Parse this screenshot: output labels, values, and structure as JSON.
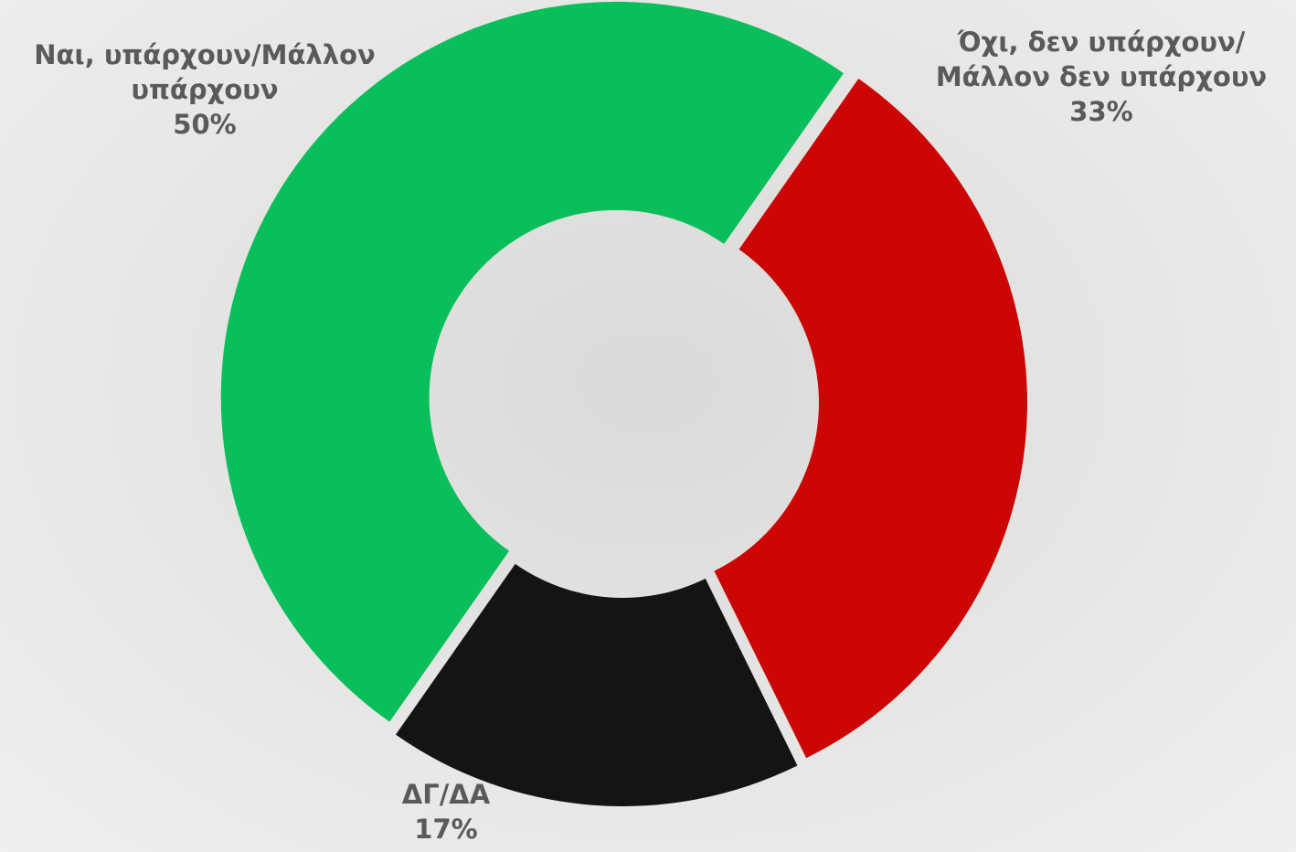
{
  "chart_data": {
    "type": "donut",
    "categories": [
      "Ναι, υπάρχουν/Μάλλον υπάρχουν",
      "Όχι, δεν υπάρχουν/Μάλλον δεν υπάρχουν",
      "ΔΓ/ΔΑ"
    ],
    "values": [
      50,
      33,
      17
    ],
    "value_labels": [
      "50%",
      "33%",
      "17%"
    ],
    "colors": [
      "#0abf5b",
      "#cc0505",
      "#141414"
    ]
  }
}
